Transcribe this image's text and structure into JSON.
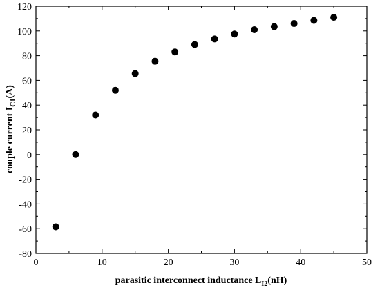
{
  "chart_data": {
    "type": "scatter",
    "title": "",
    "xlabel": {
      "main": "parasitic interconnect inductance  L",
      "sub": "I2",
      "unit": "(nH)"
    },
    "ylabel": {
      "main": "couple current I",
      "sub": "C1",
      "unit": "(A)"
    },
    "xlim": [
      0,
      50
    ],
    "ylim": [
      -80,
      120
    ],
    "xticks": [
      0,
      10,
      20,
      30,
      40,
      50
    ],
    "yticks": [
      -80,
      -60,
      -40,
      -20,
      0,
      20,
      40,
      60,
      80,
      100,
      120
    ],
    "grid": false,
    "marker_color": "#000000",
    "series": [
      {
        "x": [
          3,
          6,
          9,
          12,
          15,
          18,
          21,
          24,
          27,
          30,
          33,
          36,
          39,
          42,
          45
        ],
        "y": [
          -58.5,
          0,
          32,
          52,
          65.5,
          75.5,
          83,
          89,
          93.5,
          97.5,
          101,
          103.5,
          106,
          108.5,
          111
        ]
      }
    ]
  }
}
